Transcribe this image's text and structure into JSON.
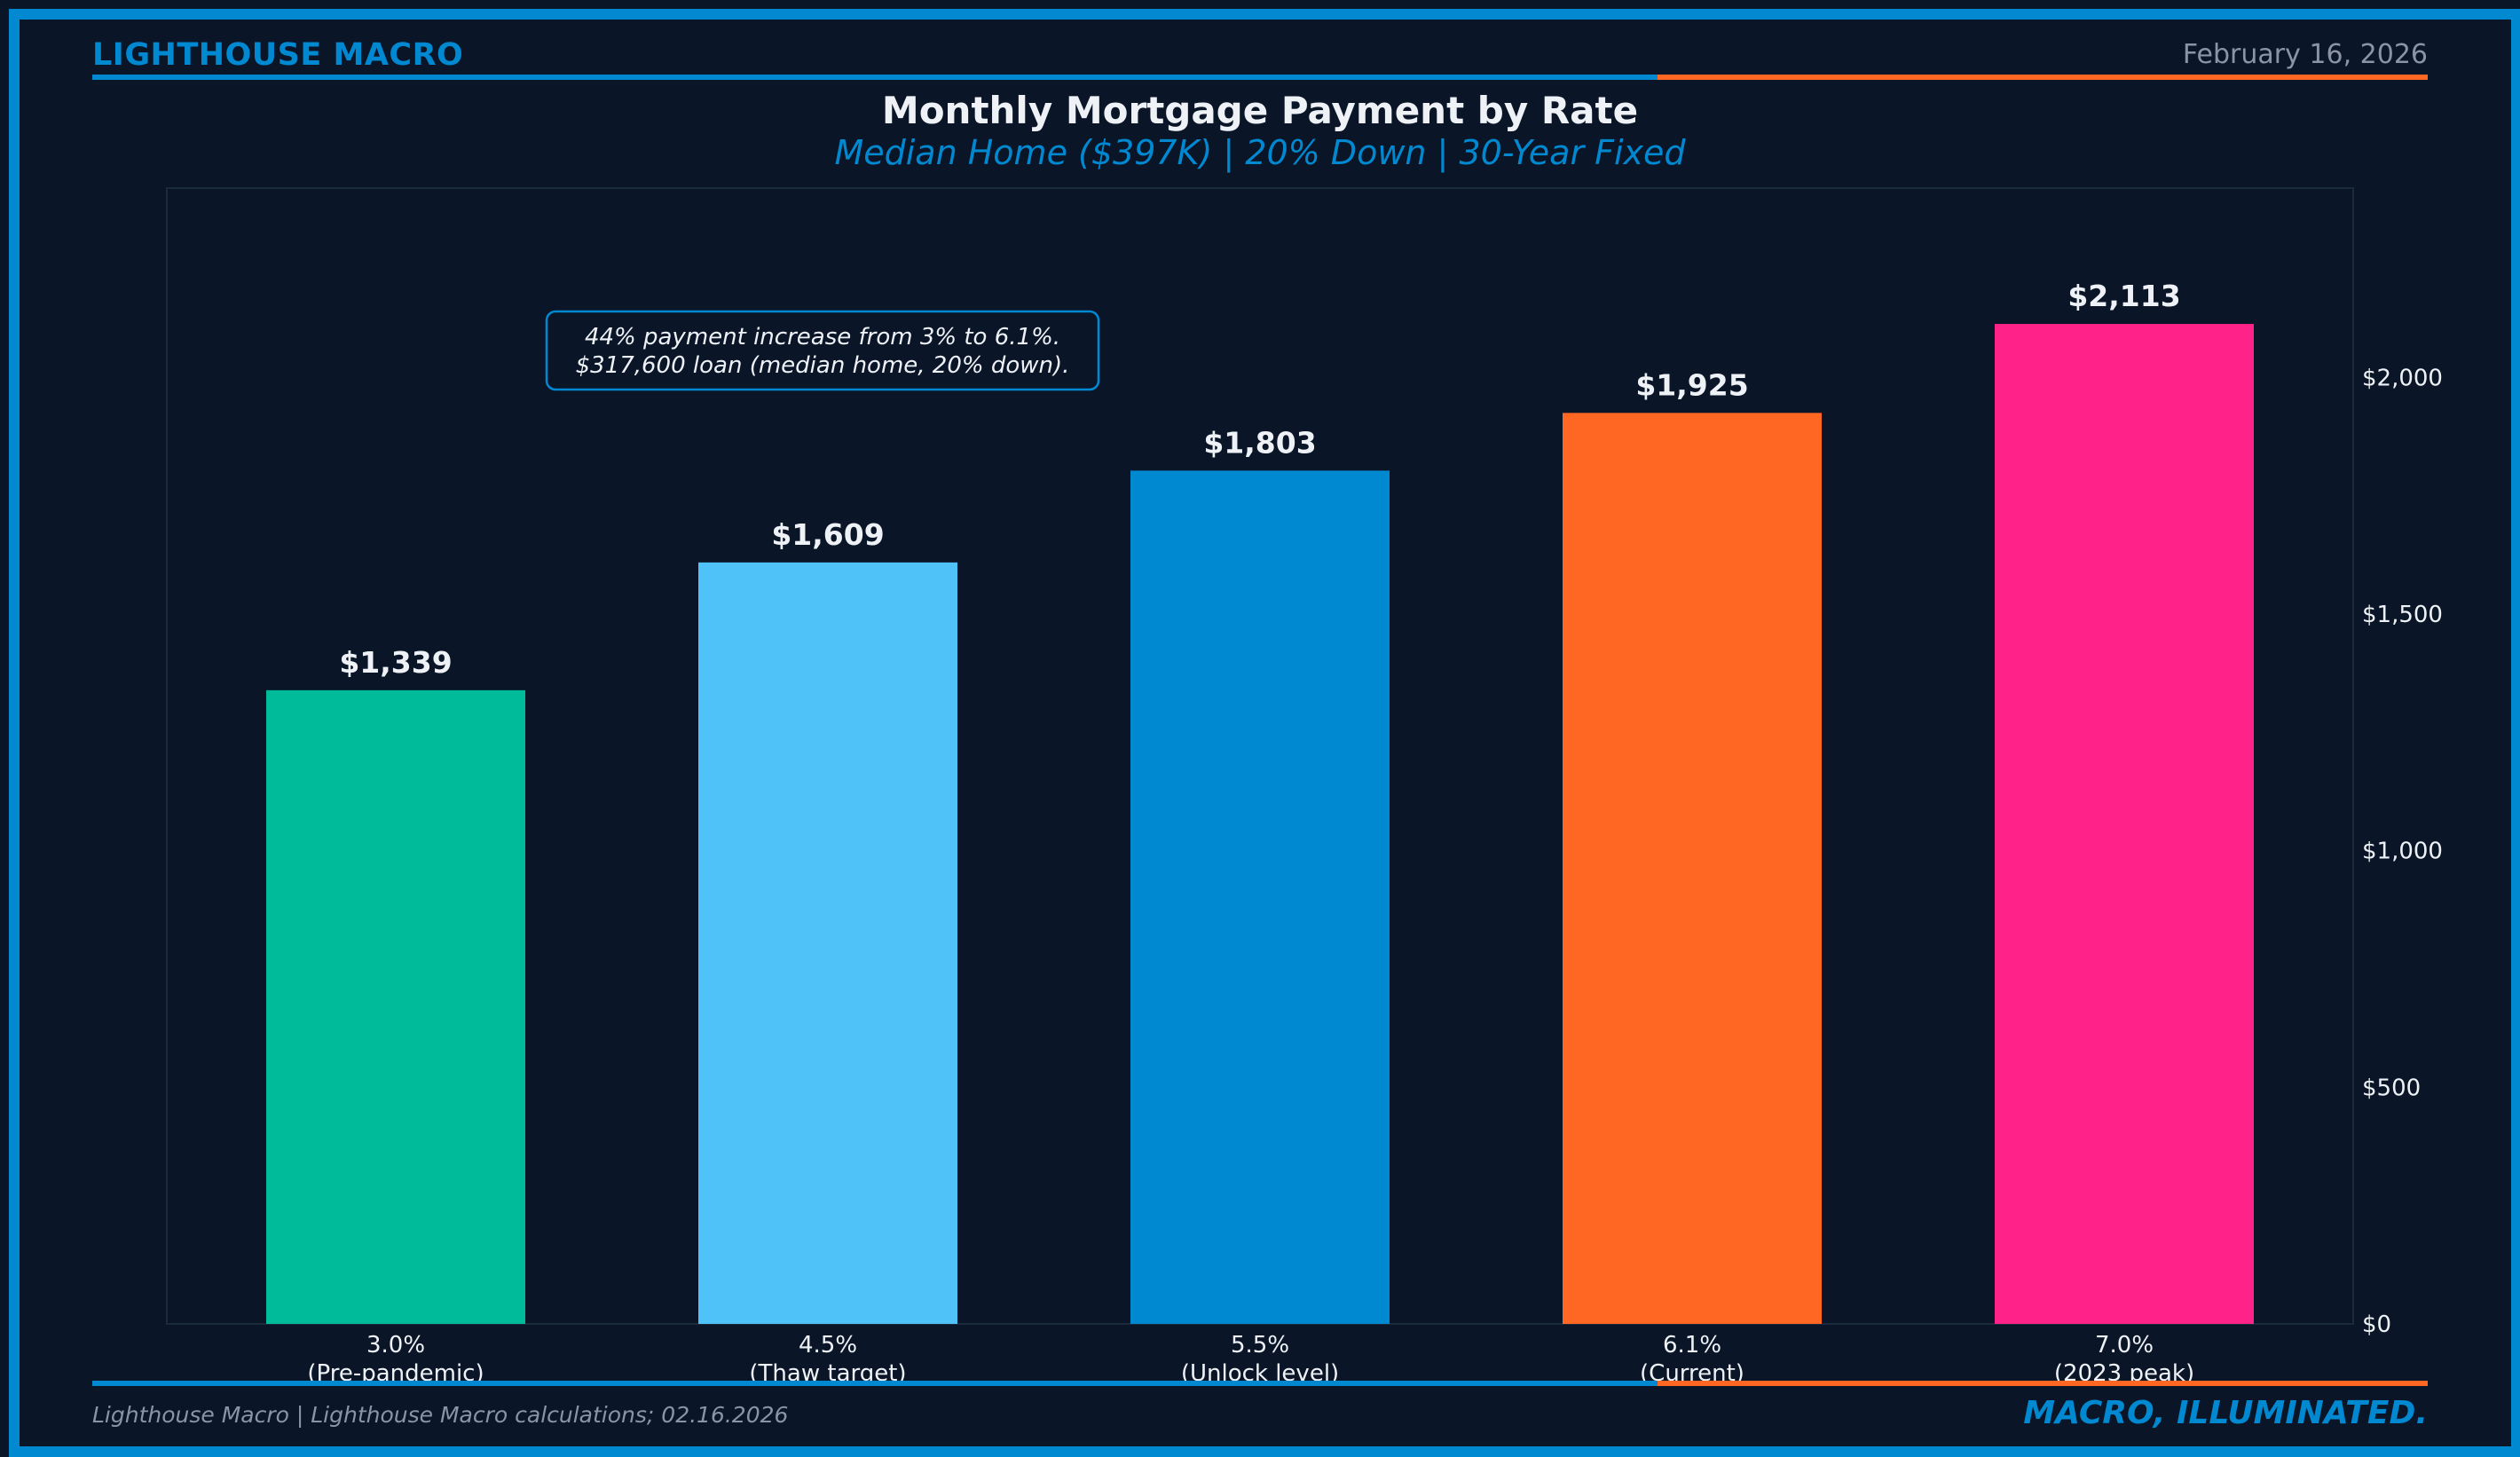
{
  "header": {
    "brand": "LIGHTHOUSE MACRO",
    "date": "February 16, 2026"
  },
  "footer": {
    "source": "Lighthouse Macro | Lighthouse Macro calculations; 02.16.2026",
    "tagline": "MACRO, ILLUMINATED."
  },
  "colors": {
    "background": "#0a1628",
    "accent_blue": "#0088d1",
    "accent_orange": "#ff6723",
    "text_light": "#eef2f7",
    "text_muted": "#8a94a3"
  },
  "chart_data": {
    "type": "bar",
    "title": "Monthly Mortgage Payment by Rate",
    "subtitle": "Median Home ($397K) | 20% Down | 30-Year Fixed",
    "categories": [
      {
        "rate": "3.0%",
        "label": "(Pre-pandemic)"
      },
      {
        "rate": "4.5%",
        "label": "(Thaw target)"
      },
      {
        "rate": "5.5%",
        "label": "(Unlock level)"
      },
      {
        "rate": "6.1%",
        "label": "(Current)"
      },
      {
        "rate": "7.0%",
        "label": "(2023 peak)"
      }
    ],
    "values": [
      1339,
      1609,
      1803,
      1925,
      2113
    ],
    "value_labels": [
      "$1,339",
      "$1,609",
      "$1,803",
      "$1,925",
      "$2,113"
    ],
    "bar_colors": [
      "#00bb99",
      "#4fc3f7",
      "#0088d1",
      "#ff6723",
      "#ff2389"
    ],
    "y_axis": {
      "position": "right",
      "ylim": [
        0,
        2400
      ],
      "ticks": [
        0,
        500,
        1000,
        1500,
        2000
      ],
      "tick_labels": [
        "$0",
        "$500",
        "$1,000",
        "$1,500",
        "$2,000"
      ]
    },
    "annotation": {
      "line1": "44% payment increase from 3% to 6.1%.",
      "line2": "$317,600 loan (median home, 20% down)."
    },
    "xlabel": "",
    "ylabel": "",
    "grid": false
  }
}
